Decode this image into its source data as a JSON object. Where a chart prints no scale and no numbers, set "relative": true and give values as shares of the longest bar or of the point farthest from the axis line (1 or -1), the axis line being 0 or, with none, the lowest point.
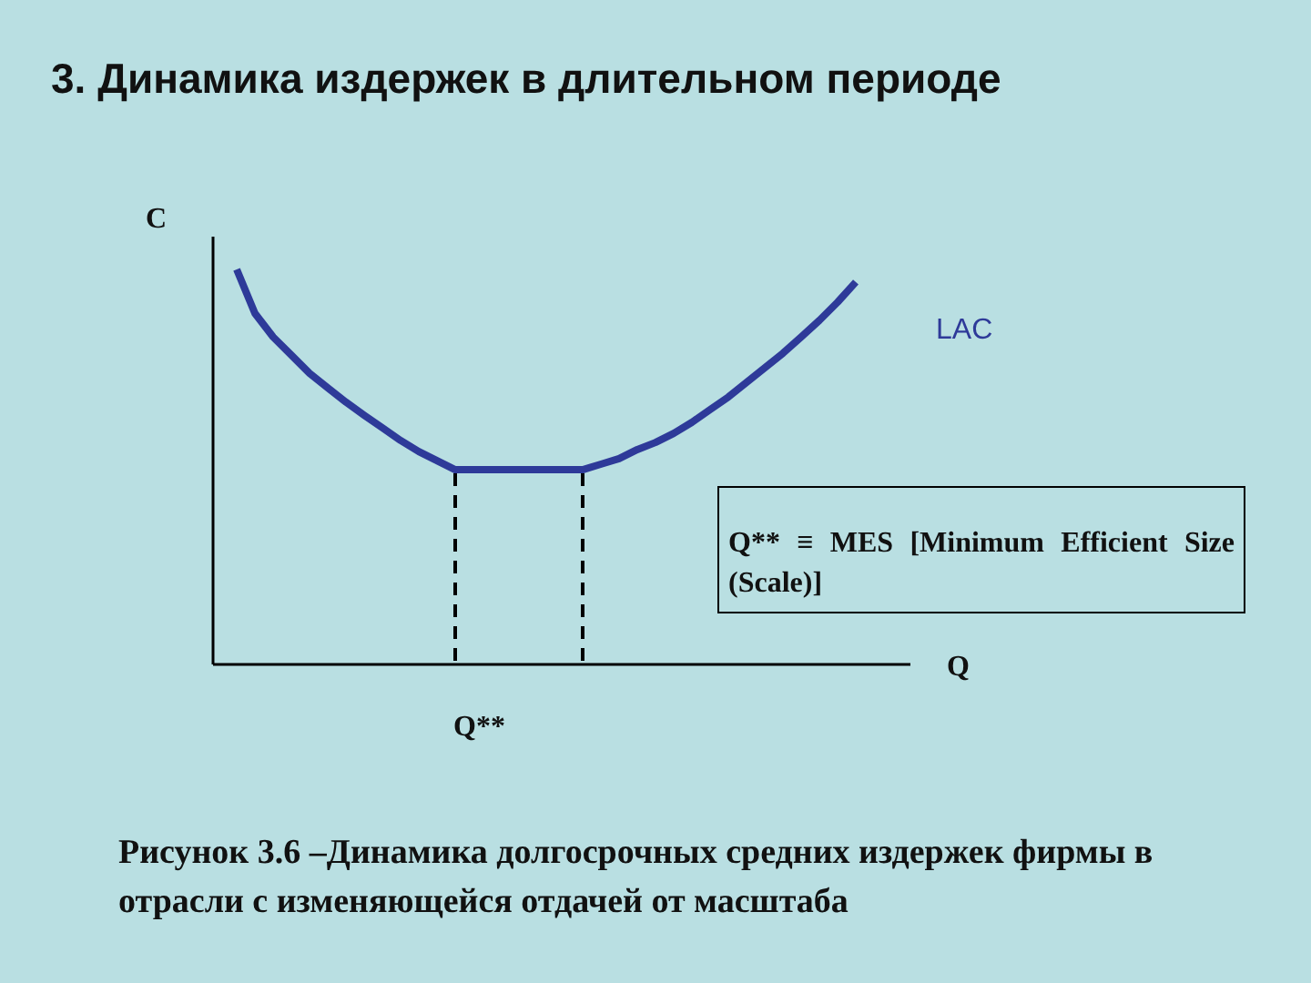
{
  "chart_data": {
    "type": "line",
    "title": "3. Динамика издержек в длительном периоде",
    "xlabel": "Q",
    "ylabel": "C",
    "relative": true,
    "marker": "none",
    "line_style": "solid",
    "categories": [
      null,
      null,
      null,
      null,
      null,
      null,
      null,
      null,
      null,
      null,
      null,
      null,
      null,
      null,
      null,
      null,
      null,
      null,
      null,
      null,
      null,
      null,
      null,
      null,
      null,
      null,
      null,
      null,
      null,
      null,
      null,
      null,
      null,
      null,
      null
    ],
    "series": [
      {
        "name": "LAC",
        "color": "#2e3a99",
        "values": [
          1,
          0.889,
          0.829,
          0.783,
          0.737,
          0.7,
          0.664,
          0.631,
          0.599,
          0.567,
          0.539,
          0.516,
          0.493,
          0.493,
          0.493,
          0.493,
          0.493,
          0.493,
          0.493,
          0.493,
          0.507,
          0.521,
          0.544,
          0.562,
          0.585,
          0.613,
          0.645,
          0.677,
          0.714,
          0.751,
          0.788,
          0.829,
          0.871,
          0.917,
          0.968
        ]
      }
    ],
    "annotations": [
      "Q**",
      "Q** ≡ MES [Minimum Efficient Size (Scale)]",
      "Рисунок 3.6 –Динамика долгосрочных средних издержек фирмы в отрасли с изменяющейся отдачей от масштаба"
    ]
  }
}
